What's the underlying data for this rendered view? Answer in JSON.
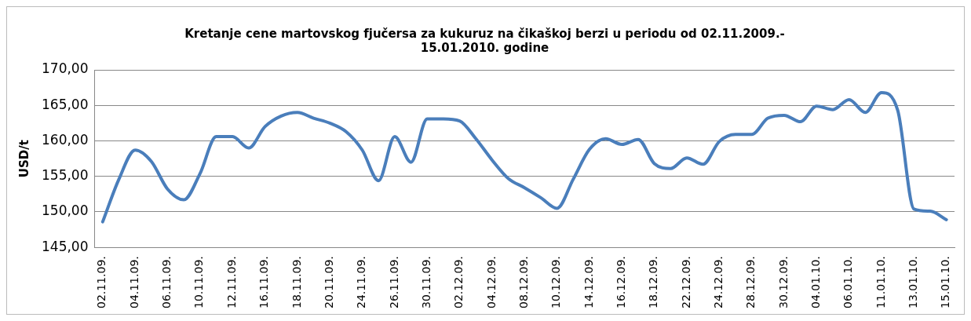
{
  "chart_data": {
    "type": "line",
    "title": [
      "Kretanje cene martovskog fjučersa za kukuruz na čikaškoj berzi u periodu od 02.11.2009.-",
      "15.01.2010. godine"
    ],
    "ylabel": "USD/t",
    "categories": [
      "02.11.09.",
      null,
      "04.11.09.",
      null,
      "06.11.09.",
      null,
      "10.11.09.",
      null,
      "12.11.09.",
      null,
      "16.11.09.",
      null,
      "18.11.09.",
      null,
      "20.11.09.",
      null,
      "24.11.09.",
      null,
      "26.11.09.",
      null,
      "30.11.09.",
      null,
      "02.12.09.",
      null,
      "04.12.09.",
      null,
      "08.12.09.",
      null,
      "10.12.09.",
      null,
      "14.12.09.",
      null,
      "16.12.09.",
      null,
      "18.12.09.",
      null,
      "22.12.09.",
      null,
      "24.12.09.",
      null,
      "28.12.09.",
      null,
      "30.12.09.",
      null,
      "04.01.10.",
      null,
      "06.01.10.",
      null,
      "11.01.10.",
      null,
      "13.01.10.",
      null,
      "15.01.10."
    ],
    "series": [
      {
        "color": "#4a7ebb",
        "values": [
          148.6,
          154.6,
          158.7,
          157.1,
          153.2,
          151.7,
          155.4,
          160.6,
          160.6,
          159.0,
          162.0,
          163.5,
          164.0,
          163.2,
          162.5,
          161.3,
          158.7,
          154.4,
          160.6,
          157.0,
          163.1,
          163.1,
          162.8,
          160.3,
          157.3,
          154.7,
          153.4,
          152.0,
          150.5,
          154.6,
          158.8,
          160.3,
          159.5,
          160.2,
          156.8,
          156.1,
          157.6,
          156.7,
          159.9,
          160.9,
          160.9,
          163.2,
          163.6,
          162.7,
          164.9,
          164.4,
          165.8,
          164.0,
          166.8,
          164.3,
          150.4,
          150.1,
          148.9
        ]
      }
    ],
    "ylim": [
      145,
      170
    ],
    "yticks": [
      {
        "value": 145,
        "label": "145,00"
      },
      {
        "value": 150,
        "label": "150,00"
      },
      {
        "value": 155,
        "label": "155,00"
      },
      {
        "value": 160,
        "label": "160,00"
      },
      {
        "value": 165,
        "label": "165,00"
      },
      {
        "value": 170,
        "label": "170,00"
      }
    ],
    "grid": "y",
    "legend": false,
    "marker": "none",
    "line_style": "solid"
  }
}
